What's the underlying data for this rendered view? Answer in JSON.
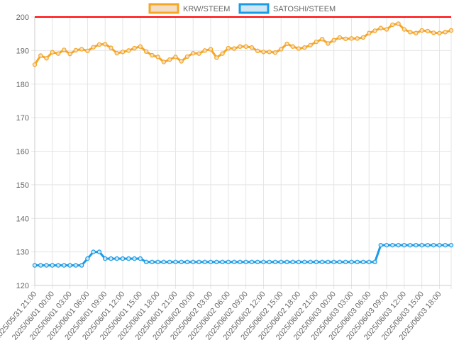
{
  "chart_data": {
    "type": "line",
    "x_tick_labels": [
      "2025/05/31 21:00",
      "2025/06/01 00:00",
      "2025/06/01 03:00",
      "2025/06/01 06:00",
      "2025/06/01 09:00",
      "2025/06/01 12:00",
      "2025/06/01 15:00",
      "2025/06/01 18:00",
      "2025/06/01 21:00",
      "2025/06/02 00:00",
      "2025/06/02 03:00",
      "2025/06/02 06:00",
      "2025/06/02 09:00",
      "2025/06/02 12:00",
      "2025/06/02 15:00",
      "2025/06/02 18:00",
      "2025/06/02 21:00",
      "2025/06/03 00:00",
      "2025/06/03 03:00",
      "2025/06/03 06:00",
      "2025/06/03 09:00",
      "2025/06/03 12:00",
      "2025/06/03 15:00",
      "2025/06/03 18:00"
    ],
    "y_ticks": [
      120,
      130,
      140,
      150,
      160,
      170,
      180,
      190,
      200
    ],
    "ylim": [
      120,
      200
    ],
    "reference_line": {
      "value": 200,
      "color": "#ff0000"
    },
    "grid": true,
    "legend_position": "top",
    "series": [
      {
        "name": "KRW/STEEM",
        "color": "#f5a623",
        "fill": "#f5dcc4",
        "values": [
          185.8,
          188.5,
          187.7,
          189.5,
          189.1,
          190.2,
          189.0,
          190.1,
          190.4,
          189.9,
          191.0,
          191.8,
          191.9,
          190.8,
          189.2,
          189.6,
          190.0,
          190.7,
          191.2,
          189.7,
          188.6,
          188.1,
          186.6,
          187.3,
          188.1,
          186.8,
          188.2,
          189.2,
          189.1,
          190.0,
          190.4,
          187.9,
          189.1,
          190.7,
          190.6,
          191.2,
          191.2,
          190.9,
          189.9,
          189.6,
          189.6,
          189.4,
          190.4,
          192.0,
          191.2,
          190.6,
          190.9,
          191.6,
          192.6,
          193.4,
          192.1,
          193.1,
          193.9,
          193.5,
          193.6,
          193.6,
          193.9,
          195.2,
          195.9,
          196.7,
          196.3,
          197.7,
          198.0,
          196.3,
          195.5,
          195.2,
          196.0,
          195.8,
          195.3,
          195.2,
          195.5,
          196.0
        ]
      },
      {
        "name": "SATOSHI/STEEM",
        "color": "#1a9be6",
        "fill": "#cfe6f5",
        "values": [
          126,
          126,
          126,
          126,
          126,
          126,
          126,
          126,
          126,
          128,
          130,
          130,
          128,
          128,
          128,
          128,
          128,
          128,
          128,
          127,
          127,
          127,
          127,
          127,
          127,
          127,
          127,
          127,
          127,
          127,
          127,
          127,
          127,
          127,
          127,
          127,
          127,
          127,
          127,
          127,
          127,
          127,
          127,
          127,
          127,
          127,
          127,
          127,
          127,
          127,
          127,
          127,
          127,
          127,
          127,
          127,
          127,
          127,
          127,
          132,
          132,
          132,
          132,
          132,
          132,
          132,
          132,
          132,
          132,
          132,
          132,
          132
        ]
      }
    ]
  }
}
